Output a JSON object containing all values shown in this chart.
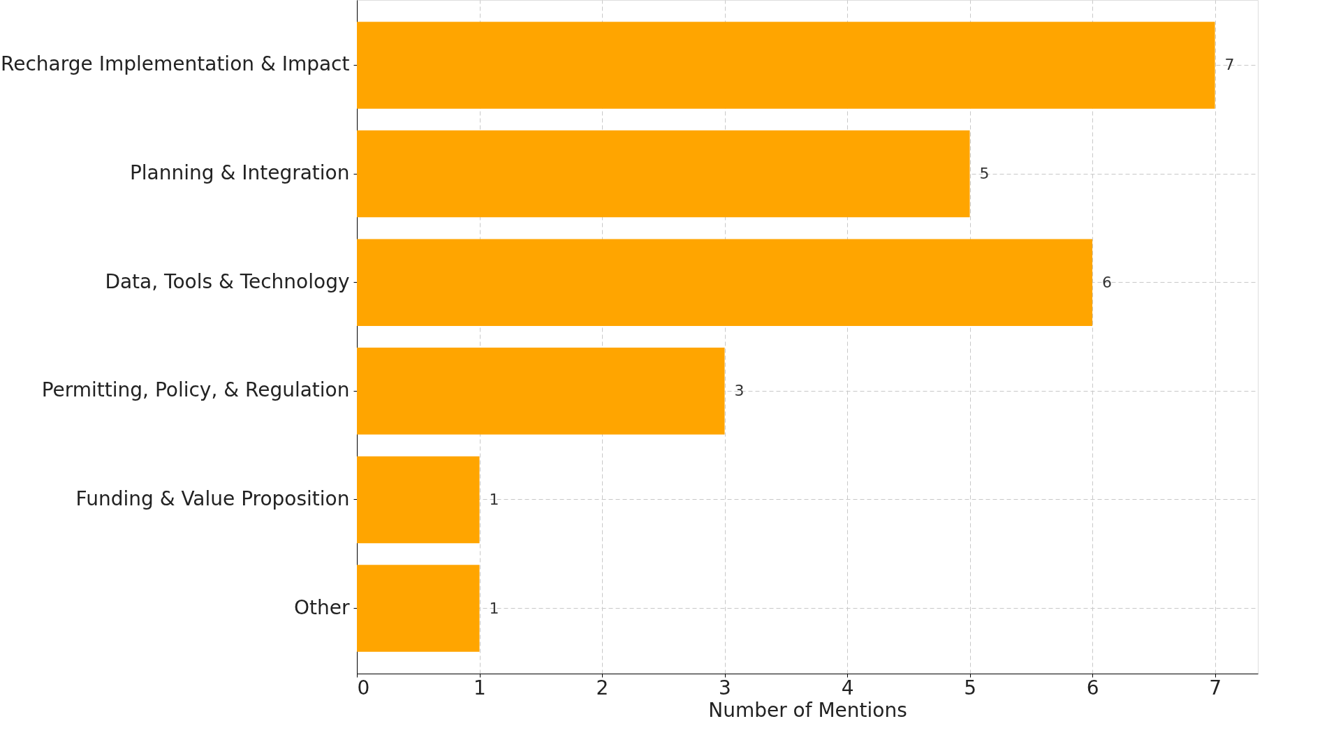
{
  "chart_data": {
    "type": "bar",
    "orientation": "horizontal",
    "xlabel": "Number of Mentions",
    "categories": [
      "Recharge Implementation & Impact",
      "Planning & Integration",
      "Data, Tools & Technology",
      "Permitting, Policy, & Regulation",
      "Funding & Value Proposition",
      "Other"
    ],
    "values": [
      7,
      5,
      6,
      3,
      1,
      1
    ],
    "color": "#ffa500",
    "xlim": [
      0,
      7.35
    ],
    "xticks": [
      0,
      1,
      2,
      3,
      4,
      5,
      6,
      7
    ],
    "grid": true,
    "data_labels": true
  }
}
